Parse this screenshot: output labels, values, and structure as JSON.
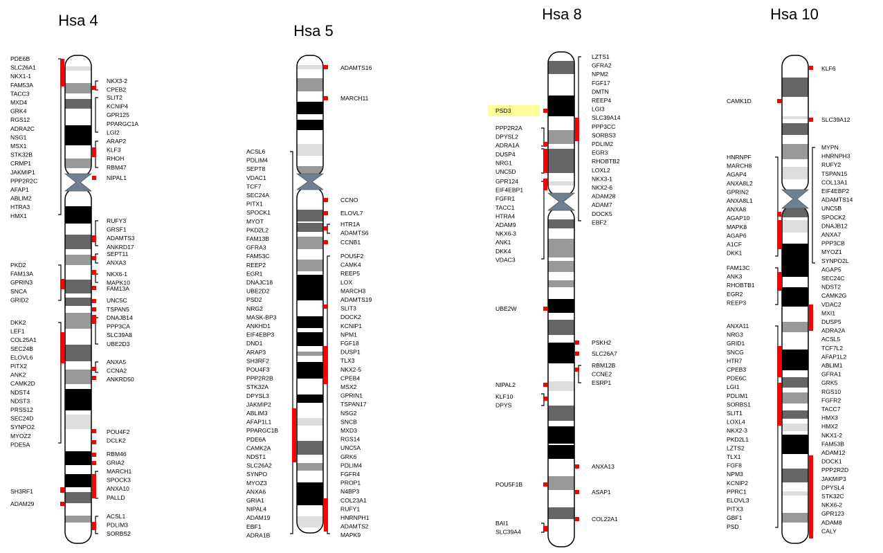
{
  "colors": {
    "band_dark": "#000000",
    "band_mid": "#666666",
    "band_light": "#999999",
    "band_pale": "#dddddd",
    "centromere": "#708090",
    "marker": "#ff0000",
    "highlight": "#ffff99"
  },
  "chromosomes": [
    {
      "id": "hsa4",
      "title": "Hsa 4",
      "left_genes": [
        "PDE6B",
        "SLC26A1",
        "NKX1-1",
        "FAM53A",
        "TACC3",
        "MXD4",
        "GRK4",
        "RGS12",
        "ADRA2C",
        "NSG1",
        "MSX1",
        "STK32B",
        "CRMP1",
        "JAKMIP1",
        "PPP2R2C",
        "AFAP1",
        "ABLIM2",
        "HTRA3",
        "HMX1",
        "PKD2",
        "FAM13A",
        "GPRIN3",
        "SNCA",
        "GRID2",
        "DKK2",
        "LEF1",
        "COL25A1",
        "SEC24B",
        "ELOVL6",
        "PITX2",
        "ANK2",
        "CAMK2D",
        "NDST4",
        "NDST3",
        "PRSS12",
        "SEC24D",
        "SYNPO2",
        "MYOZ2",
        "PDE5A",
        "SH3RF1",
        "ADAM29"
      ],
      "right_genes": [
        "NKX3-2",
        "CPEB2",
        "SLIT2",
        "KCNIP4",
        "GPR125",
        "PPARGC1A",
        "LGI2",
        "ARAP2",
        "KLF3",
        "RHOH",
        "RBM47",
        "NIPAL1",
        "RUFY3",
        "GRSF1",
        "ADAMTS3",
        "ANKRD17",
        "SEPT11",
        "ANXA3",
        "NKX6-1",
        "MAPK10",
        "FAM13A",
        "UNC5C",
        "TSPAN5",
        "DNAJB14",
        "PPP3CA",
        "SLC39A8",
        "UBE2D3",
        "ANXA5",
        "CCNA2",
        "ANKRD50",
        "POU4F2",
        "DCLK2",
        "RBM46",
        "GRIA2",
        "MARCH1",
        "SPOCK3",
        "ANXA10",
        "PALLD",
        "ACSL1",
        "PDLIM3",
        "SORBS2"
      ]
    },
    {
      "id": "hsa5",
      "title": "Hsa 5",
      "left_genes": [
        "ACSL6",
        "PDLIM4",
        "SEPT8",
        "VDAC1",
        "TCF7",
        "SEC24A",
        "PITX1",
        "SPOCK1",
        "MYOT",
        "PKD2L2",
        "FAM13B",
        "GFRA3",
        "FAM53C",
        "REEP2",
        "EGR1",
        "DNAJC18",
        "UBE2D2",
        "PSD2",
        "NRG2",
        "MASK-BP3",
        "ANKHD1",
        "EIF4EBP3",
        "DND1",
        "ARAP3",
        "SH3RF2",
        "POU4F3",
        "PPP2R2B",
        "STK32A",
        "DPYSL3",
        "JAKMIP2",
        "ABLIM3",
        "AFAP1L1",
        "PPARGC1B",
        "PDE6A",
        "CAMK2A",
        "NDST1",
        "SLC26A2",
        "SYNPO",
        "MYOZ3",
        "ANXA6",
        "GRIA1",
        "NIPAL4",
        "ADAM19",
        "EBF1",
        "ADRA1B"
      ],
      "right_genes": [
        "ADAMTS16",
        "MARCH11",
        "CCNO",
        "ELOVL7",
        "HTR1A",
        "ADAMTS6",
        "CCNB1",
        "POU5F2",
        "CAMK4",
        "REEP5",
        "LOX",
        "MARCH3",
        "ADAMTS19",
        "SLIT3",
        "DOCK2",
        "KCNIP1",
        "NPM1",
        "FGF18",
        "DUSP1",
        "TLX3",
        "NKX2-5",
        "CPEB4",
        "MSX2",
        "GPRIN1",
        "TSPAN17",
        "NSG2",
        "SNCB",
        "MXD3",
        "RGS14",
        "UNC5A",
        "GRK6",
        "PDLIM4",
        "FGFR4",
        "PROP1",
        "N4BP3",
        "COL23A1",
        "RUFY1",
        "HNRNPH1",
        "ADAMTS2",
        "MAPK9"
      ]
    },
    {
      "id": "hsa8",
      "title": "Hsa 8",
      "left_genes": [
        "PSD3",
        "PPP2R2A",
        "DPYSL2",
        "ADRA1A",
        "DUSP4",
        "NRG1",
        "UNC5D",
        "GPR124",
        "EIF4EBP1",
        "FGFR1",
        "TACC1",
        "HTRA4",
        "ADAM9",
        "NKX6-3",
        "ANK1",
        "DKK4",
        "VDAC3",
        "UBE2W",
        "NIPAL2",
        "KLF10",
        "DPYS",
        "POU5F1B",
        "BAI1",
        "SLC39A4"
      ],
      "right_genes": [
        "LZTS1",
        "GFRA2",
        "NPM2",
        "FGF17",
        "DMTN",
        "REEP4",
        "LGI3",
        "SLC39A14",
        "PPP3CC",
        "SORBS3",
        "PDLIM2",
        "EGR3",
        "RHOBTB2",
        "LOXL2",
        "NKX3-1",
        "NKX2-6",
        "ADAM28",
        "ADAM7",
        "DOCK5",
        "EBF2",
        "PSKH2",
        "SLC26A7",
        "RBM12B",
        "CCNE2",
        "ESRP1",
        "ANXA13",
        "ASAP1",
        "COL22A1"
      ]
    },
    {
      "id": "hsa10",
      "title": "Hsa 10",
      "left_genes": [
        "CAMK1D",
        "HNRNPF",
        "MARCH8",
        "AGAP4",
        "ANXA8L2",
        "GPRIN2",
        "ANXA8L1",
        "ANXA8",
        "AGAP10",
        "MAPK8",
        "AGAP6",
        "A1CF",
        "DKK1",
        "FAM13C",
        "ANK3",
        "RHOBTB1",
        "EGR2",
        "REEP3",
        "ANXA11",
        "NRG3",
        "GRID1",
        "SNCG",
        "HTR7",
        "CPEB3",
        "PDE6C",
        "LGI1",
        "PDLIM1",
        "SORBS1",
        "SLIT1",
        "LOXL4",
        "NKX2-3",
        "PKD2L1",
        "LZTS2",
        "TLX1",
        "FGF8",
        "NPM3",
        "KCNIP2",
        "PPRC1",
        "ELOVL3",
        "PITX3",
        "GBF1",
        "PSD"
      ],
      "right_genes": [
        "KLF6",
        "SLC39A12",
        "MYPN",
        "HNRNPH3",
        "RUFY2",
        "TSPAN15",
        "COL13A1",
        "EIF4EBP2",
        "ADAMTS14",
        "UNC5B",
        "SPOCK2",
        "DNAJB12",
        "ANXA7",
        "PPP3CB",
        "MYOZ1",
        "SYNPO2L",
        "AGAP5",
        "SEC24C",
        "NDST2",
        "CAMK2G",
        "VDAC2",
        "MXI1",
        "DUSP5",
        "ADRA2A",
        "ACSL5",
        "TCF7L2",
        "AFAP1L2",
        "ABLIM1",
        "GFRA1",
        "GRK5",
        "RGS10",
        "FGFR2",
        "TACC7",
        "HMX3",
        "HMX2",
        "NKX1-2",
        "FAM53B",
        "ADAM12",
        "DOCK1",
        "PPP2R2D",
        "JAKMIP3",
        "DPYSL4",
        "STK32C",
        "NKX6-2",
        "GPR123",
        "ADAM8",
        "CALY"
      ]
    }
  ]
}
